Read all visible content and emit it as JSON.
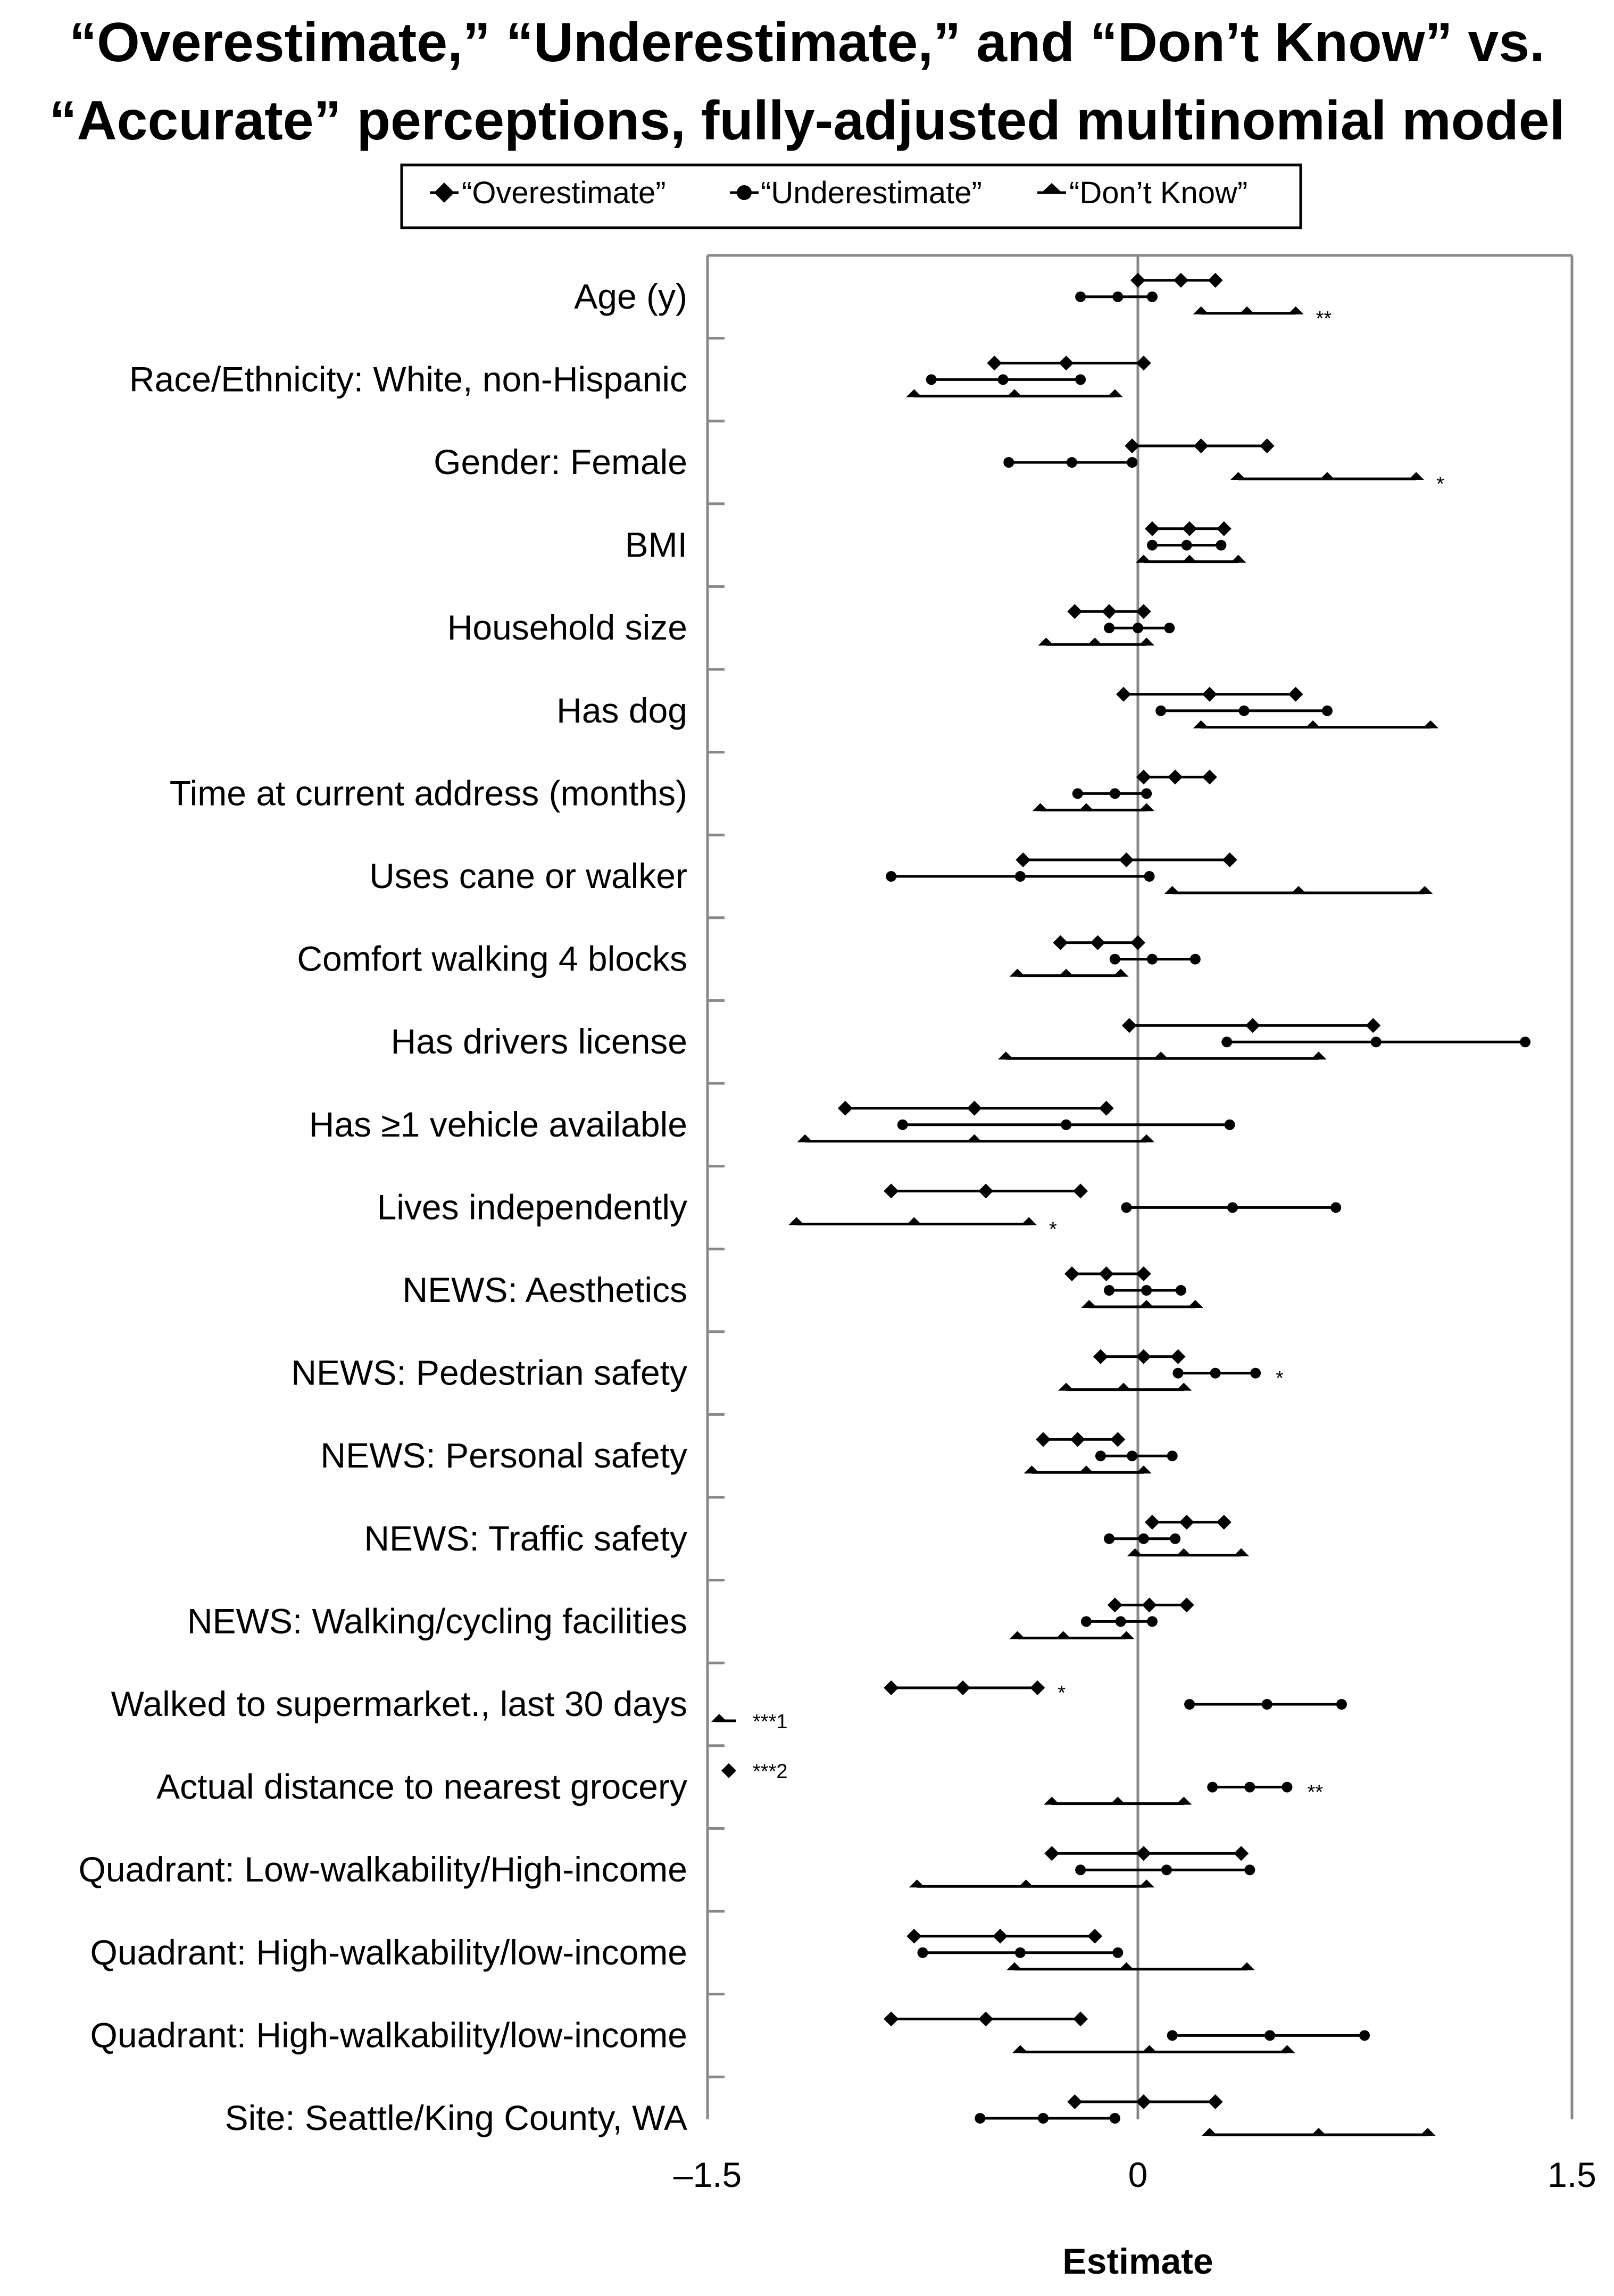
{
  "chart_data": {
    "type": "scatter",
    "title_lines": [
      "“Overestimate,” “Underestimate,” and “Don’t Know” vs.",
      "“Accurate” perceptions, fully-adjusted multinomial model"
    ],
    "xlabel": "Estimate",
    "xlim": [
      -1.5,
      1.5
    ],
    "x_ticks": [
      {
        "value": -1.5,
        "label": "–1.5"
      },
      {
        "value": 0,
        "label": "0"
      },
      {
        "value": 1.5,
        "label": "1.5"
      }
    ],
    "legend": [
      {
        "name": "“Overestimate”",
        "marker": "diamond"
      },
      {
        "name": "“Underestimate”",
        "marker": "circle"
      },
      {
        "name": "“Don’t Know”",
        "marker": "half-diamond"
      }
    ],
    "series_keys": [
      "over",
      "under",
      "dk"
    ],
    "series_markers": {
      "over": "diamond",
      "under": "circle",
      "dk": "half-diamond"
    },
    "rows": [
      {
        "label": "Age (y)",
        "over": {
          "est": 0.15,
          "lo": 0.0,
          "hi": 0.27
        },
        "under": {
          "est": -0.07,
          "lo": -0.2,
          "hi": 0.05
        },
        "dk": {
          "est": 0.38,
          "lo": 0.22,
          "hi": 0.55,
          "sig": "**"
        }
      },
      {
        "label": "Race/Ethnicity: White, non-Hispanic",
        "over": {
          "est": -0.25,
          "lo": -0.5,
          "hi": 0.02
        },
        "under": {
          "est": -0.47,
          "lo": -0.72,
          "hi": -0.2
        },
        "dk": {
          "est": -0.43,
          "lo": -0.78,
          "hi": -0.08
        }
      },
      {
        "label": "Gender: Female",
        "over": {
          "est": 0.22,
          "lo": -0.02,
          "hi": 0.45
        },
        "under": {
          "est": -0.23,
          "lo": -0.45,
          "hi": -0.02
        },
        "dk": {
          "est": 0.66,
          "lo": 0.35,
          "hi": 0.97,
          "sig": "*"
        }
      },
      {
        "label": "BMI",
        "over": {
          "est": 0.18,
          "lo": 0.05,
          "hi": 0.3
        },
        "under": {
          "est": 0.17,
          "lo": 0.05,
          "hi": 0.29
        },
        "dk": {
          "est": 0.18,
          "lo": 0.02,
          "hi": 0.35
        }
      },
      {
        "label": "Household size",
        "over": {
          "est": -0.1,
          "lo": -0.22,
          "hi": 0.02
        },
        "under": {
          "est": 0.0,
          "lo": -0.1,
          "hi": 0.11
        },
        "dk": {
          "est": -0.15,
          "lo": -0.32,
          "hi": 0.03
        }
      },
      {
        "label": "Has dog",
        "over": {
          "est": 0.25,
          "lo": -0.05,
          "hi": 0.55
        },
        "under": {
          "est": 0.37,
          "lo": 0.08,
          "hi": 0.66
        },
        "dk": {
          "est": 0.61,
          "lo": 0.22,
          "hi": 1.02
        }
      },
      {
        "label": "Time at current address (months)",
        "over": {
          "est": 0.13,
          "lo": 0.02,
          "hi": 0.25
        },
        "under": {
          "est": -0.08,
          "lo": -0.21,
          "hi": 0.03
        },
        "dk": {
          "est": -0.18,
          "lo": -0.34,
          "hi": 0.03
        }
      },
      {
        "label": "Uses cane or walker",
        "over": {
          "est": -0.04,
          "lo": -0.4,
          "hi": 0.32
        },
        "under": {
          "est": -0.41,
          "lo": -0.86,
          "hi": 0.04
        },
        "dk": {
          "est": 0.56,
          "lo": 0.12,
          "hi": 1.0
        }
      },
      {
        "label": "Comfort walking 4 blocks",
        "over": {
          "est": -0.14,
          "lo": -0.27,
          "hi": 0.0
        },
        "under": {
          "est": 0.05,
          "lo": -0.08,
          "hi": 0.2
        },
        "dk": {
          "est": -0.25,
          "lo": -0.42,
          "hi": -0.06
        }
      },
      {
        "label": "Has drivers license",
        "over": {
          "est": 0.4,
          "lo": -0.03,
          "hi": 0.82
        },
        "under": {
          "est": 0.83,
          "lo": 0.31,
          "hi": 1.35
        },
        "dk": {
          "est": 0.08,
          "lo": -0.46,
          "hi": 0.63
        }
      },
      {
        "label": "Has ≥1 vehicle available",
        "over": {
          "est": -0.57,
          "lo": -1.02,
          "hi": -0.11
        },
        "under": {
          "est": -0.25,
          "lo": -0.82,
          "hi": 0.32
        },
        "dk": {
          "est": -0.57,
          "lo": -1.16,
          "hi": 0.03
        }
      },
      {
        "label": "Lives independently",
        "over": {
          "est": -0.53,
          "lo": -0.86,
          "hi": -0.2
        },
        "under": {
          "est": 0.33,
          "lo": -0.04,
          "hi": 0.69
        },
        "dk": {
          "est": -0.78,
          "lo": -1.19,
          "hi": -0.38,
          "sig": "*"
        }
      },
      {
        "label": "NEWS: Aesthetics",
        "over": {
          "est": -0.11,
          "lo": -0.23,
          "hi": 0.02
        },
        "under": {
          "est": 0.03,
          "lo": -0.1,
          "hi": 0.15
        },
        "dk": {
          "est": 0.03,
          "lo": -0.17,
          "hi": 0.2
        }
      },
      {
        "label": "NEWS: Pedestrian safety",
        "over": {
          "est": 0.02,
          "lo": -0.13,
          "hi": 0.14
        },
        "under": {
          "est": 0.27,
          "lo": 0.14,
          "hi": 0.41,
          "sig": "*"
        },
        "dk": {
          "est": -0.05,
          "lo": -0.25,
          "hi": 0.16
        }
      },
      {
        "label": "NEWS: Personal safety",
        "over": {
          "est": -0.21,
          "lo": -0.33,
          "hi": -0.07
        },
        "under": {
          "est": -0.02,
          "lo": -0.13,
          "hi": 0.12
        },
        "dk": {
          "est": -0.18,
          "lo": -0.37,
          "hi": 0.02
        }
      },
      {
        "label": "NEWS: Traffic safety",
        "over": {
          "est": 0.17,
          "lo": 0.05,
          "hi": 0.3
        },
        "under": {
          "est": 0.02,
          "lo": -0.1,
          "hi": 0.13
        },
        "dk": {
          "est": 0.16,
          "lo": -0.01,
          "hi": 0.36
        }
      },
      {
        "label": "NEWS: Walking/cycling facilities",
        "over": {
          "est": 0.04,
          "lo": -0.08,
          "hi": 0.17
        },
        "under": {
          "est": -0.06,
          "lo": -0.18,
          "hi": 0.05
        },
        "dk": {
          "est": -0.26,
          "lo": -0.42,
          "hi": -0.04
        }
      },
      {
        "label": "Walked to supermarket., last 30 days",
        "over": {
          "est": -0.61,
          "lo": -0.86,
          "hi": -0.35,
          "sig": "*"
        },
        "under": {
          "est": 0.45,
          "lo": 0.18,
          "hi": 0.71
        },
        "dk": null,
        "note": "***1"
      },
      {
        "label": "Actual distance to nearest grocery",
        "over": null,
        "under": {
          "est": 0.39,
          "lo": 0.26,
          "hi": 0.52,
          "sig": "**"
        },
        "dk": {
          "est": -0.07,
          "lo": -0.3,
          "hi": 0.16
        },
        "note": "***2"
      },
      {
        "label": "Quadrant: Low-walkability/High-income",
        "over": {
          "est": 0.02,
          "lo": -0.3,
          "hi": 0.36
        },
        "under": {
          "est": 0.1,
          "lo": -0.2,
          "hi": 0.39
        },
        "dk": {
          "est": -0.39,
          "lo": -0.77,
          "hi": 0.03
        }
      },
      {
        "label": "Quadrant: High-walkability/low-income",
        "over": {
          "est": -0.48,
          "lo": -0.78,
          "hi": -0.15
        },
        "under": {
          "est": -0.41,
          "lo": -0.75,
          "hi": -0.07
        },
        "dk": {
          "est": -0.04,
          "lo": -0.43,
          "hi": 0.38
        }
      },
      {
        "label": "Quadrant: High-walkability/low-income",
        "over": {
          "est": -0.53,
          "lo": -0.86,
          "hi": -0.2
        },
        "under": {
          "est": 0.46,
          "lo": 0.12,
          "hi": 0.79
        },
        "dk": {
          "est": 0.04,
          "lo": -0.41,
          "hi": 0.52
        }
      },
      {
        "label": "Site: Seattle/King County, WA",
        "over": {
          "est": 0.02,
          "lo": -0.22,
          "hi": 0.27
        },
        "under": {
          "est": -0.33,
          "lo": -0.55,
          "hi": -0.08
        },
        "dk": {
          "est": 0.63,
          "lo": 0.25,
          "hi": 1.01
        }
      }
    ]
  }
}
